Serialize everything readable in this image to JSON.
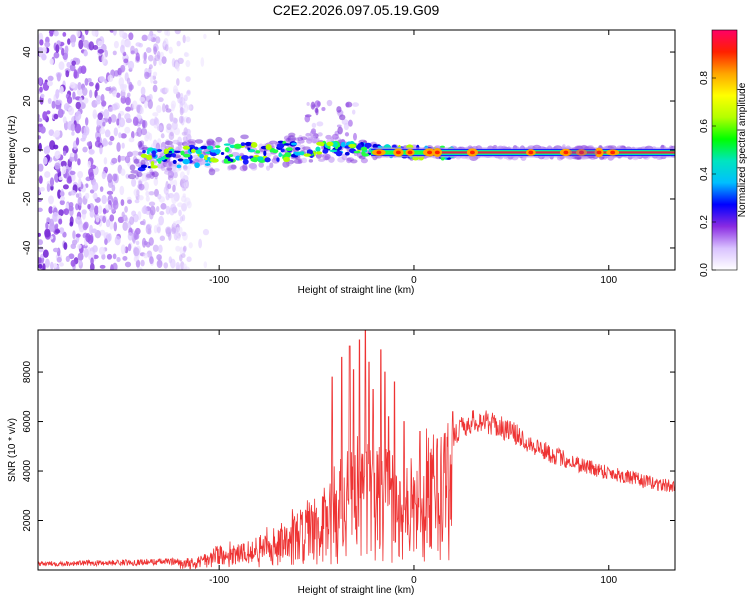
{
  "title": "C2E2.2026.097.05.19.G09",
  "colors": {
    "snr_line": "#ee3333",
    "spectral_ridge": "#dd2255",
    "axes": "#000000"
  },
  "chart_data": [
    {
      "type": "heatmap",
      "name": "spectrogram",
      "xlabel": "Height of straight line (km)",
      "ylabel": "Frequency (Hz)",
      "xlim": [
        -193,
        134
      ],
      "ylim": [
        -49,
        49
      ],
      "xticks": [
        -100,
        0,
        100
      ],
      "yticks": [
        -40,
        -20,
        0,
        20,
        40
      ],
      "ridge": {
        "description_points_km_hz": [
          [
            -143,
            -4
          ],
          [
            -100,
            -2
          ],
          [
            -60,
            0
          ],
          [
            -40,
            1
          ],
          [
            -25,
            0
          ],
          [
            0,
            -1
          ],
          [
            40,
            -1
          ],
          [
            80,
            -1
          ],
          [
            134,
            -1
          ]
        ],
        "noise_region_km": [
          -193,
          -115
        ]
      },
      "colorbar": {
        "label": "Normalized spectral amplitude",
        "ticks": [
          0.0,
          0.2,
          0.4,
          0.6,
          0.8
        ],
        "range": [
          0,
          1
        ],
        "colors": [
          "#ffffff",
          "#d9c2ff",
          "#8a2be2",
          "#0000ff",
          "#00bfff",
          "#00e5c0",
          "#00ff00",
          "#b4ff00",
          "#ffff00",
          "#ffa500",
          "#ff2000",
          "#ff0066"
        ]
      }
    },
    {
      "type": "line",
      "name": "snr",
      "xlabel": "Height of straight line (km)",
      "ylabel": "SNR (10 * v/v)",
      "xlim": [
        -193,
        134
      ],
      "ylim": [
        0,
        9700
      ],
      "xticks": [
        -100,
        0,
        100
      ],
      "yticks": [
        2000,
        4000,
        6000,
        8000
      ],
      "series": [
        {
          "name": "SNR",
          "envelope_x_km": [
            -193,
            -150,
            -120,
            -110,
            -100,
            -90,
            -80,
            -70,
            -60,
            -50,
            -45,
            -40,
            -35,
            -30,
            -25,
            -20,
            -15,
            -10,
            -5,
            0,
            5,
            10,
            15,
            20,
            25,
            30,
            35,
            40,
            50,
            60,
            70,
            80,
            90,
            100,
            110,
            120,
            134
          ],
          "envelope_y": [
            250,
            300,
            350,
            500,
            800,
            1000,
            1300,
            1700,
            2100,
            2800,
            3400,
            3800,
            4200,
            4500,
            4700,
            4800,
            4900,
            4000,
            3600,
            3700,
            4300,
            4700,
            5000,
            5400,
            5800,
            6000,
            6050,
            5900,
            5600,
            5100,
            4700,
            4400,
            4150,
            3950,
            3750,
            3550,
            3350
          ],
          "spikes": [
            [
              -42,
              7800
            ],
            [
              -37,
              8600
            ],
            [
              -33,
              9050
            ],
            [
              -31,
              8100
            ],
            [
              -28,
              9300
            ],
            [
              -25,
              9700
            ],
            [
              -23,
              8400
            ],
            [
              -21,
              7300
            ],
            [
              -17,
              8900
            ],
            [
              -15,
              8000
            ],
            [
              -13,
              6200
            ],
            [
              -10,
              7600
            ],
            [
              -5,
              6000
            ],
            [
              3,
              5600
            ],
            [
              12,
              5300
            ],
            [
              20,
              6400
            ],
            [
              24,
              6000
            ]
          ]
        }
      ]
    }
  ]
}
